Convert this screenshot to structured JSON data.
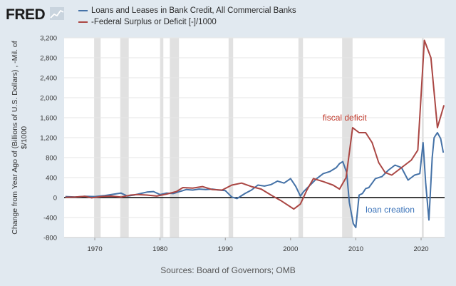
{
  "header": {
    "logo_text": "FRED",
    "logo_icon": "chart-line-icon"
  },
  "legend": [
    {
      "label": "Loans and Leases in Bank Credit, All Commercial Banks",
      "color": "#4572a7"
    },
    {
      "label": "-Federal Surplus or Deficit [-]/1000",
      "color": "#aa4643"
    }
  ],
  "source_text": "Sources: Board of Governors; OMB",
  "chart_data": {
    "type": "line",
    "xlabel": "",
    "ylabel_lines": [
      "Change from Year Ago of (Billions of U.S. Dollars) , -Mil. of",
      "$/1000"
    ],
    "xlim": [
      1965.3,
      2023.6
    ],
    "ylim": [
      -800,
      3200
    ],
    "y_ticks": [
      -800,
      -400,
      0,
      400,
      800,
      1200,
      1600,
      2000,
      2400,
      2800,
      3200
    ],
    "y_tick_labels": [
      "-800",
      "-400",
      "0",
      "400",
      "800",
      "1,200",
      "1,600",
      "2,000",
      "2,400",
      "2,800",
      "3,200"
    ],
    "x_ticks": [
      1970,
      1980,
      1990,
      2000,
      2010,
      2020
    ],
    "x_tick_labels": [
      "1970",
      "1980",
      "1990",
      "2000",
      "2010",
      "2020"
    ],
    "grid": true,
    "zero_line": true,
    "recessions": [
      [
        1969.9,
        1970.9
      ],
      [
        1973.9,
        1975.2
      ],
      [
        1980.0,
        1980.5
      ],
      [
        1981.5,
        1982.9
      ],
      [
        1990.5,
        1991.2
      ],
      [
        2001.2,
        2001.9
      ],
      [
        2007.9,
        2009.5
      ],
      [
        2020.1,
        2020.4
      ]
    ],
    "series": [
      {
        "name": "Loans and Leases in Bank Credit, All Commercial Banks",
        "color": "#4572a7",
        "x": [
          1965.5,
          1967,
          1968.5,
          1970,
          1971.5,
          1973,
          1974,
          1975,
          1976,
          1977,
          1978,
          1979,
          1980,
          1981,
          1982,
          1983,
          1984,
          1985,
          1986,
          1987,
          1988,
          1989,
          1990,
          1991,
          1991.8,
          1993,
          1994,
          1995,
          1996,
          1997,
          1998,
          1999,
          2000,
          2000.8,
          2001.5,
          2002,
          2003,
          2004,
          2005,
          2006,
          2007,
          2007.5,
          2008,
          2008.6,
          2009,
          2009.6,
          2010,
          2010.5,
          2011,
          2011.5,
          2012,
          2013,
          2014,
          2015,
          2016,
          2017,
          2018,
          2019,
          2019.8,
          2020.3,
          2020.7,
          2021.2,
          2021.7,
          2022,
          2022.5,
          2023,
          2023.4
        ],
        "y": [
          20,
          10,
          25,
          20,
          40,
          70,
          90,
          30,
          50,
          80,
          110,
          120,
          60,
          90,
          80,
          120,
          160,
          150,
          170,
          160,
          170,
          150,
          140,
          10,
          -20,
          80,
          150,
          250,
          230,
          260,
          330,
          290,
          380,
          220,
          30,
          120,
          250,
          380,
          480,
          520,
          600,
          680,
          720,
          500,
          -100,
          -520,
          -600,
          50,
          80,
          180,
          200,
          380,
          420,
          550,
          650,
          600,
          350,
          450,
          480,
          1100,
          300,
          -450,
          800,
          1200,
          1300,
          1180,
          900
        ]
      },
      {
        "name": "-Federal Surplus or Deficit [-]/1000",
        "color": "#aa4643",
        "x": [
          1965.5,
          1967,
          1968.5,
          1969.5,
          1971,
          1972.5,
          1974,
          1975.5,
          1976.5,
          1978,
          1979.5,
          1981,
          1982.5,
          1983.5,
          1985,
          1986.5,
          1988,
          1989.5,
          1991,
          1992.5,
          1994,
          1995.5,
          1997,
          1998.5,
          2000.5,
          2001.5,
          2002.5,
          2003.5,
          2005,
          2006.5,
          2007.5,
          2008.5,
          2009.5,
          2010.5,
          2011.5,
          2012.5,
          2013.5,
          2014.5,
          2015.5,
          2016.5,
          2017.5,
          2018.5,
          2019.5,
          2020.5,
          2021.5,
          2022.5,
          2023.5
        ],
        "y": [
          5,
          10,
          25,
          -5,
          20,
          30,
          10,
          50,
          60,
          50,
          30,
          70,
          120,
          200,
          190,
          220,
          160,
          150,
          250,
          290,
          220,
          170,
          50,
          -60,
          -230,
          -130,
          150,
          380,
          320,
          250,
          170,
          400,
          1400,
          1300,
          1300,
          1100,
          700,
          500,
          450,
          550,
          650,
          750,
          950,
          3150,
          2800,
          1400,
          1850
        ]
      }
    ],
    "annotations": [
      {
        "text": "fiscal deficit",
        "color": "#c0392b",
        "x": 2004.9,
        "y": 1540
      },
      {
        "text": "loan creation",
        "color": "#3a72b8",
        "x": 2011.5,
        "y": -300
      }
    ]
  }
}
